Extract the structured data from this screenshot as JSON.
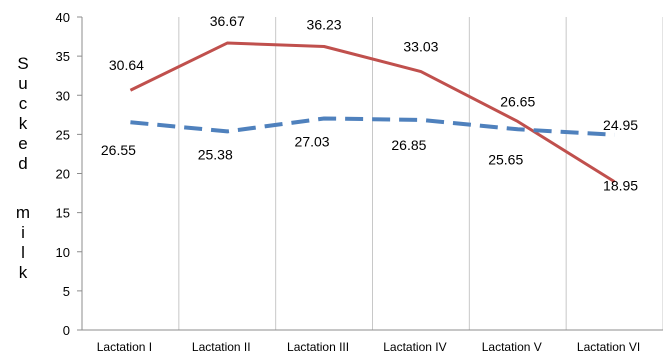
{
  "chart_data": {
    "type": "line",
    "categories": [
      "Lactation I",
      "Lactation II",
      "Lactation III",
      "Lactation IV",
      "Lactation V",
      "Lactation VI"
    ],
    "series": [
      {
        "values": [
          30.64,
          36.67,
          36.23,
          33.03,
          26.65,
          18.95
        ],
        "color": "#c0504d",
        "style": "solid"
      },
      {
        "values": [
          26.55,
          25.38,
          27.03,
          26.85,
          25.65,
          24.95
        ],
        "color": "#4f81bd",
        "style": "dashed"
      }
    ],
    "data_labels": {
      "s0": [
        "30.64",
        "36.67",
        "36.23",
        "33.03",
        "26.65",
        "18.95"
      ],
      "s1": [
        "26.55",
        "25.38",
        "27.03",
        "26.85",
        "25.65",
        "24.95"
      ]
    },
    "title": "",
    "xlabel": "",
    "ylabel": "Sucked milk",
    "ylim": [
      0,
      40
    ],
    "yticks": [
      "0",
      "5",
      "10",
      "15",
      "20",
      "25",
      "30",
      "35",
      "40"
    ],
    "grid": "vertical lines only",
    "legend": "none"
  }
}
